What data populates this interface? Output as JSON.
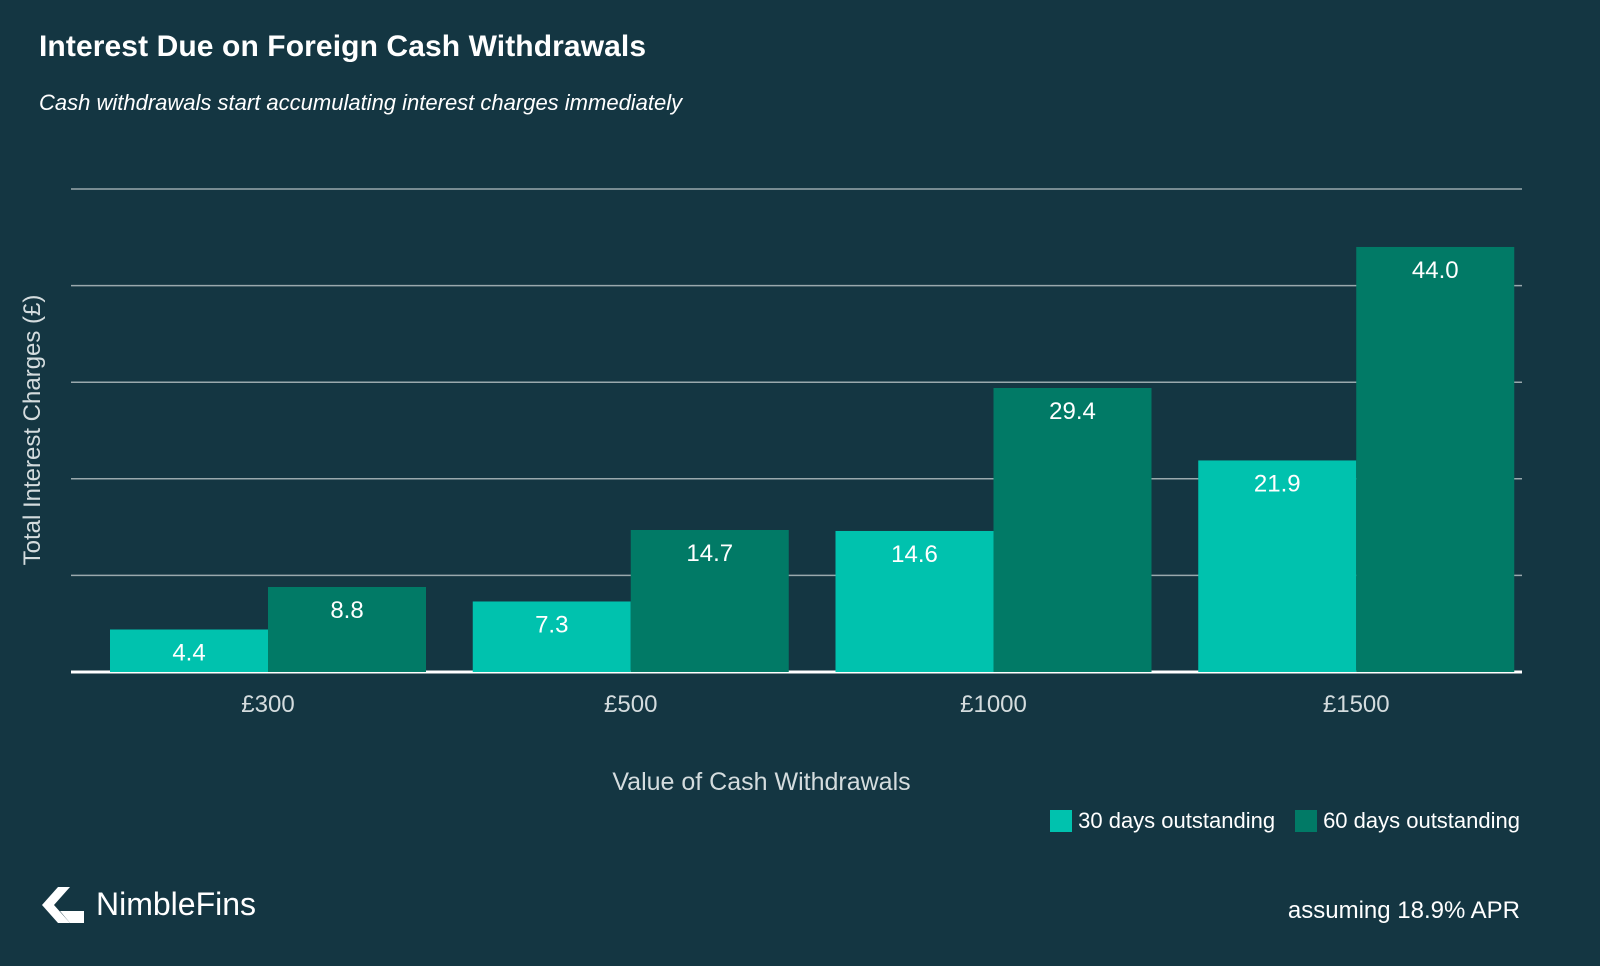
{
  "title": "Interest Due on Foreign Cash Withdrawals",
  "subtitle": "Cash withdrawals start accumulating interest charges immediately",
  "colors": {
    "background": "#143642",
    "series_30": "#00c2ae",
    "series_60": "#017a66",
    "grid": "#9aa9ad",
    "axis_text": "#d4dcde"
  },
  "chart_data": {
    "type": "bar",
    "categories": [
      "£300",
      "£500",
      "£1000",
      "£1500"
    ],
    "series": [
      {
        "name": "30 days outstanding",
        "values": [
          4.4,
          7.3,
          14.6,
          21.9
        ]
      },
      {
        "name": "60 days outstanding",
        "values": [
          8.8,
          14.7,
          29.4,
          44.0
        ]
      }
    ],
    "data_labels": [
      [
        "4.4",
        "7.3",
        "14.6",
        "21.9"
      ],
      [
        "8.8",
        "14.7",
        "29.4",
        "44.0"
      ]
    ],
    "xlabel": "Value of Cash Withdrawals",
    "ylabel": "Total Interest Charges (£)",
    "ylim": [
      0,
      50
    ],
    "grid": true,
    "legend_position": "bottom-right"
  },
  "brand": {
    "name": "NimbleFins",
    "icon": "nimblefins-logo-icon"
  },
  "footnote": "assuming 18.9% APR"
}
